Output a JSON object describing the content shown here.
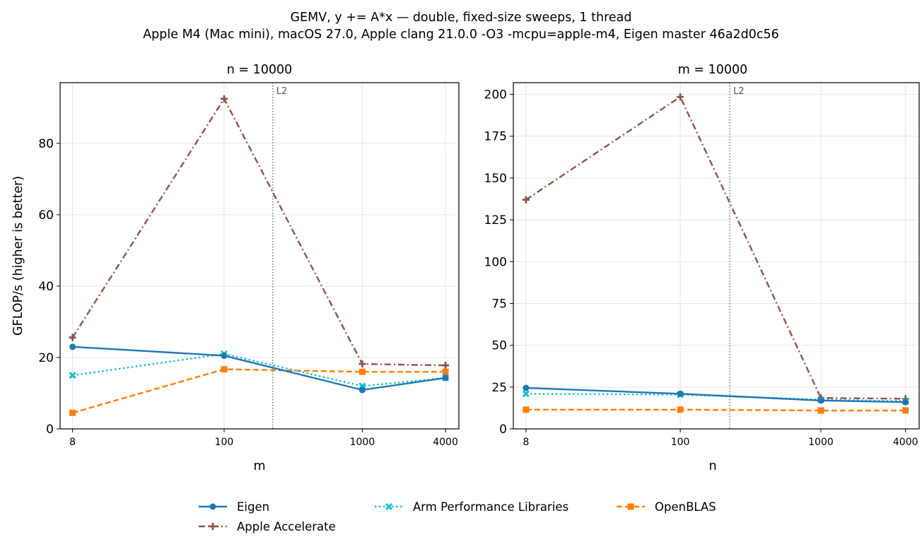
{
  "figure": {
    "title_line1": "GEMV, y += A*x — double, fixed-size sweeps, 1 thread",
    "title_line2": "Apple M4 (Mac mini), macOS 27.0, Apple clang 21.0.0 -O3 -mcpu=apple-m4, Eigen master 46a2d0c56"
  },
  "legend": {
    "placement": "bottom-center",
    "entries": [
      {
        "name": "Eigen",
        "color": "#1f77b4",
        "marker": "circle",
        "dash": "solid"
      },
      {
        "name": "Arm Performance Libraries",
        "color": "#17becf",
        "marker": "x",
        "dash": "dotted"
      },
      {
        "name": "OpenBLAS",
        "color": "#ff7f0e",
        "marker": "square",
        "dash": "dashed"
      },
      {
        "name": "Apple Accelerate",
        "color": "#8c564b",
        "marker": "plus",
        "dash": "dashdot"
      }
    ]
  },
  "chart_data": [
    {
      "type": "line",
      "title": "n = 10000",
      "xlabel": "m",
      "ylabel": "GFLOP/s (higher is better)",
      "x_scale": "log",
      "xlim": [
        6.5,
        5000
      ],
      "ylim": [
        0,
        97
      ],
      "x_ticks": [
        8,
        100,
        1000,
        4000
      ],
      "y_ticks": [
        0,
        20,
        40,
        60,
        80
      ],
      "grid": true,
      "vline": {
        "x": 225,
        "label": "L2"
      },
      "x": [
        8,
        100,
        1000,
        4000
      ],
      "series": [
        {
          "name": "Eigen",
          "values": [
            23.0,
            20.5,
            10.9,
            14.3
          ]
        },
        {
          "name": "Arm Performance Libraries",
          "values": [
            15.0,
            21.0,
            12.0,
            14.3
          ]
        },
        {
          "name": "OpenBLAS",
          "values": [
            4.5,
            16.7,
            16.0,
            16.0
          ]
        },
        {
          "name": "Apple Accelerate",
          "values": [
            25.6,
            92.5,
            18.2,
            17.8
          ]
        }
      ]
    },
    {
      "type": "line",
      "title": "m = 10000",
      "xlabel": "n",
      "ylabel": "",
      "x_scale": "log",
      "xlim": [
        6.5,
        5000
      ],
      "ylim": [
        0,
        207
      ],
      "x_ticks": [
        8,
        100,
        1000,
        4000
      ],
      "y_ticks": [
        0,
        25,
        50,
        75,
        100,
        125,
        150,
        175,
        200
      ],
      "grid": true,
      "vline": {
        "x": 225,
        "label": "L2"
      },
      "x": [
        8,
        100,
        1000,
        4000
      ],
      "series": [
        {
          "name": "Eigen",
          "values": [
            24.5,
            21.0,
            17.0,
            16.0
          ]
        },
        {
          "name": "Arm Performance Libraries",
          "values": [
            21.0,
            20.5,
            17.5,
            16.5
          ]
        },
        {
          "name": "OpenBLAS",
          "values": [
            11.5,
            11.5,
            11.0,
            11.0
          ]
        },
        {
          "name": "Apple Accelerate",
          "values": [
            137.0,
            198.5,
            18.5,
            18.0
          ]
        }
      ]
    }
  ]
}
